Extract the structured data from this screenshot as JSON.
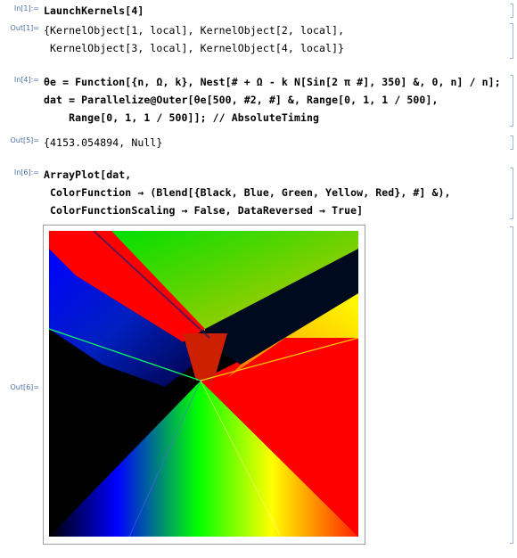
{
  "cells": [
    {
      "label": "In[1]:=",
      "lines": [
        "LaunchKernels[4]"
      ]
    },
    {
      "label": "Out[1]=",
      "lines": [
        "{KernelObject[1, local], KernelObject[2, local],",
        " KernelObject[3, local], KernelObject[4, local]}"
      ]
    },
    {
      "label": "In[4]:=",
      "lines": [
        "θe = Function[{n, Ω, k}, Nest[# + Ω - k N[Sin[2 π #], 350] &, 0, n] / n];",
        "dat = Parallelize@Outer[θe[500, #2, #] &, Range[0, 1, 1 / 500],",
        "    Range[0, 1, 1 / 500]]; // AbsoluteTiming"
      ]
    },
    {
      "label": "Out[5]=",
      "lines": [
        "{4153.054894, Null}"
      ]
    },
    {
      "label": "In[6]:=",
      "lines": [
        "ArrayPlot[dat,",
        " ColorFunction → (Blend[{Black, Blue, Green, Yellow, Red}, #] &),",
        " ColorFunctionScaling → False, DataReversed → True]"
      ]
    },
    {
      "label": "Out[6]=",
      "lines": []
    }
  ],
  "plot": {
    "type": "array-plot",
    "color_scheme": [
      "#000000",
      "#0000ff",
      "#00ff00",
      "#ffff00",
      "#ff0000"
    ]
  }
}
